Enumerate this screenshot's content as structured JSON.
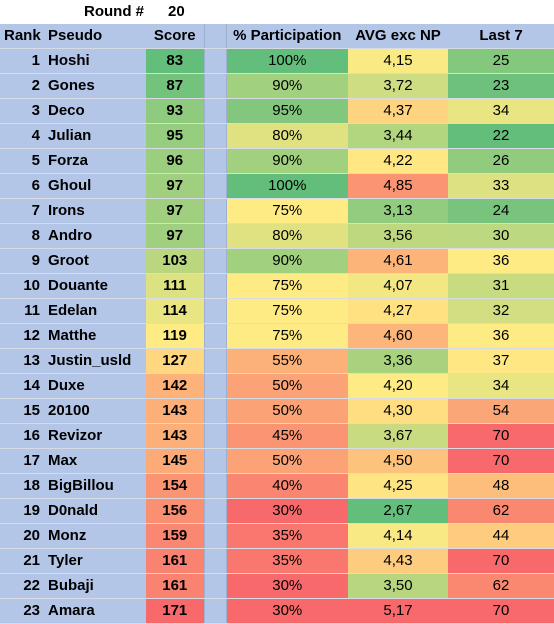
{
  "round": {
    "label": "Round #",
    "value": "20"
  },
  "headers": {
    "rank": "Rank",
    "pseudo": "Pseudo",
    "score": "Score",
    "participation": "% Participation",
    "avg": "AVG exc NP",
    "last7": "Last 7"
  },
  "colors": {
    "header_fill": "#b4c6e7",
    "scale_green": "#63be7b",
    "scale_yellow": "#ffeb84",
    "scale_red": "#f8696b"
  },
  "rows": [
    {
      "rank": "1",
      "pseudo": "Hoshi",
      "score": "83",
      "participation": "100%",
      "avg": "4,15",
      "last7": "25"
    },
    {
      "rank": "2",
      "pseudo": "Gones",
      "score": "87",
      "participation": "90%",
      "avg": "3,72",
      "last7": "23"
    },
    {
      "rank": "3",
      "pseudo": "Deco",
      "score": "93",
      "participation": "95%",
      "avg": "4,37",
      "last7": "34"
    },
    {
      "rank": "4",
      "pseudo": "Julian",
      "score": "95",
      "participation": "80%",
      "avg": "3,44",
      "last7": "22"
    },
    {
      "rank": "5",
      "pseudo": "Forza",
      "score": "96",
      "participation": "90%",
      "avg": "4,22",
      "last7": "26"
    },
    {
      "rank": "6",
      "pseudo": "Ghoul",
      "score": "97",
      "participation": "100%",
      "avg": "4,85",
      "last7": "33"
    },
    {
      "rank": "7",
      "pseudo": "Irons",
      "score": "97",
      "participation": "75%",
      "avg": "3,13",
      "last7": "24"
    },
    {
      "rank": "8",
      "pseudo": "Andro",
      "score": "97",
      "participation": "80%",
      "avg": "3,56",
      "last7": "30"
    },
    {
      "rank": "9",
      "pseudo": "Groot",
      "score": "103",
      "participation": "90%",
      "avg": "4,61",
      "last7": "36"
    },
    {
      "rank": "10",
      "pseudo": "Douante",
      "score": "111",
      "participation": "75%",
      "avg": "4,07",
      "last7": "31"
    },
    {
      "rank": "11",
      "pseudo": "Edelan",
      "score": "114",
      "participation": "75%",
      "avg": "4,27",
      "last7": "32"
    },
    {
      "rank": "12",
      "pseudo": "Matthe",
      "score": "119",
      "participation": "75%",
      "avg": "4,60",
      "last7": "36"
    },
    {
      "rank": "13",
      "pseudo": "Justin_usld",
      "score": "127",
      "participation": "55%",
      "avg": "3,36",
      "last7": "37"
    },
    {
      "rank": "14",
      "pseudo": "Duxe",
      "score": "142",
      "participation": "50%",
      "avg": "4,20",
      "last7": "34"
    },
    {
      "rank": "15",
      "pseudo": "20100",
      "score": "143",
      "participation": "50%",
      "avg": "4,30",
      "last7": "54"
    },
    {
      "rank": "16",
      "pseudo": "Revizor",
      "score": "143",
      "participation": "45%",
      "avg": "3,67",
      "last7": "70"
    },
    {
      "rank": "17",
      "pseudo": "Max",
      "score": "145",
      "participation": "50%",
      "avg": "4,50",
      "last7": "70"
    },
    {
      "rank": "18",
      "pseudo": "BigBillou",
      "score": "154",
      "participation": "40%",
      "avg": "4,25",
      "last7": "48"
    },
    {
      "rank": "19",
      "pseudo": "D0nald",
      "score": "156",
      "participation": "30%",
      "avg": "2,67",
      "last7": "62"
    },
    {
      "rank": "20",
      "pseudo": "Monz",
      "score": "159",
      "participation": "35%",
      "avg": "4,14",
      "last7": "44"
    },
    {
      "rank": "21",
      "pseudo": "Tyler",
      "score": "161",
      "participation": "35%",
      "avg": "4,43",
      "last7": "70"
    },
    {
      "rank": "22",
      "pseudo": "Bubaji",
      "score": "161",
      "participation": "30%",
      "avg": "3,50",
      "last7": "62"
    },
    {
      "rank": "23",
      "pseudo": "Amara",
      "score": "171",
      "participation": "30%",
      "avg": "5,17",
      "last7": "70"
    }
  ]
}
